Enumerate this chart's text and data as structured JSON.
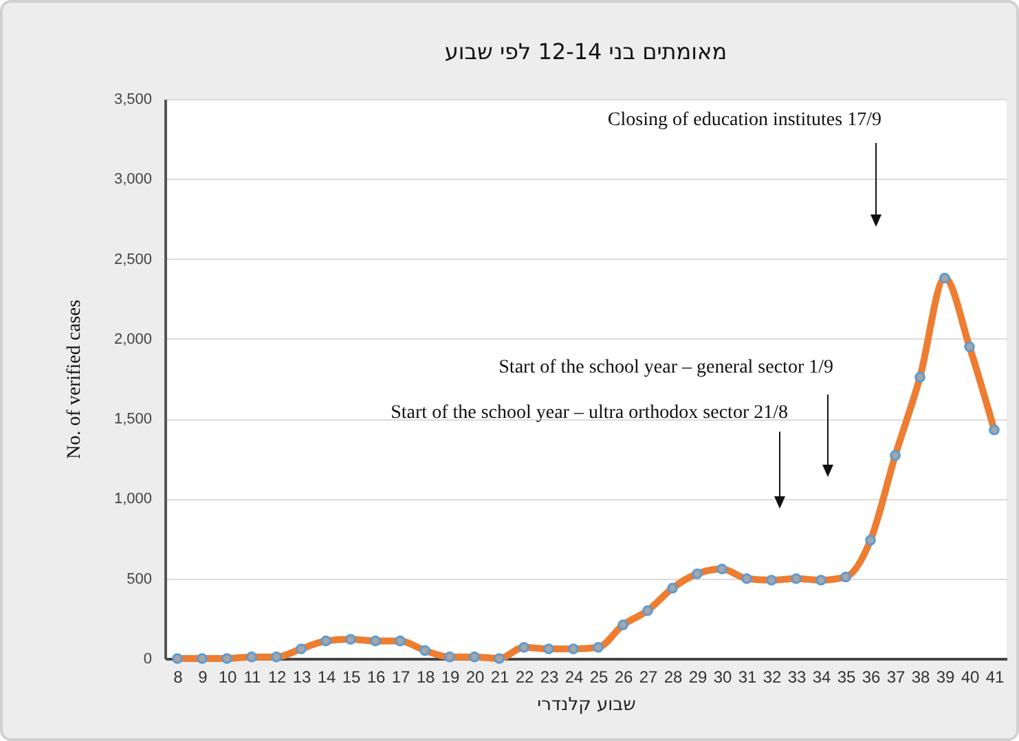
{
  "chart_data": {
    "type": "line",
    "title": "מאומתים בני 12-14 לפי שבוע",
    "xlabel": "שבוע קלנדרי",
    "ylabel": "No. of verified cases",
    "categories": [
      "8",
      "9",
      "10",
      "11",
      "12",
      "13",
      "14",
      "15",
      "16",
      "17",
      "18",
      "19",
      "20",
      "21",
      "22",
      "23",
      "24",
      "25",
      "26",
      "27",
      "28",
      "29",
      "30",
      "31",
      "32",
      "33",
      "34",
      "35",
      "36",
      "37",
      "38",
      "39",
      "40",
      "41"
    ],
    "series": [
      {
        "color": "#ed7d31",
        "values": [
          0,
          0,
          0,
          10,
          10,
          60,
          110,
          120,
          110,
          110,
          50,
          10,
          10,
          0,
          70,
          60,
          60,
          70,
          210,
          300,
          440,
          530,
          560,
          500,
          490,
          500,
          490,
          510,
          740,
          1270,
          1760,
          2380,
          1950,
          1430
        ]
      }
    ],
    "ylim": [
      0,
      3500
    ],
    "yticks": [
      {
        "value": 0,
        "label": "0"
      },
      {
        "value": 500,
        "label": "500"
      },
      {
        "value": 1000,
        "label": "1,000"
      },
      {
        "value": 1500,
        "label": "1,500"
      },
      {
        "value": 2000,
        "label": "2,000"
      },
      {
        "value": 2500,
        "label": "2,500"
      },
      {
        "value": 3000,
        "label": "3,000"
      },
      {
        "value": 3500,
        "label": "3,500"
      }
    ],
    "grid": "y",
    "marker": "circle",
    "line_style": "solid",
    "annotations": [
      "Closing of education institutes 17/9",
      "Start of the school year – general sector 1/9",
      "Start of the school year – ultra orthodox sector 21/8"
    ]
  }
}
